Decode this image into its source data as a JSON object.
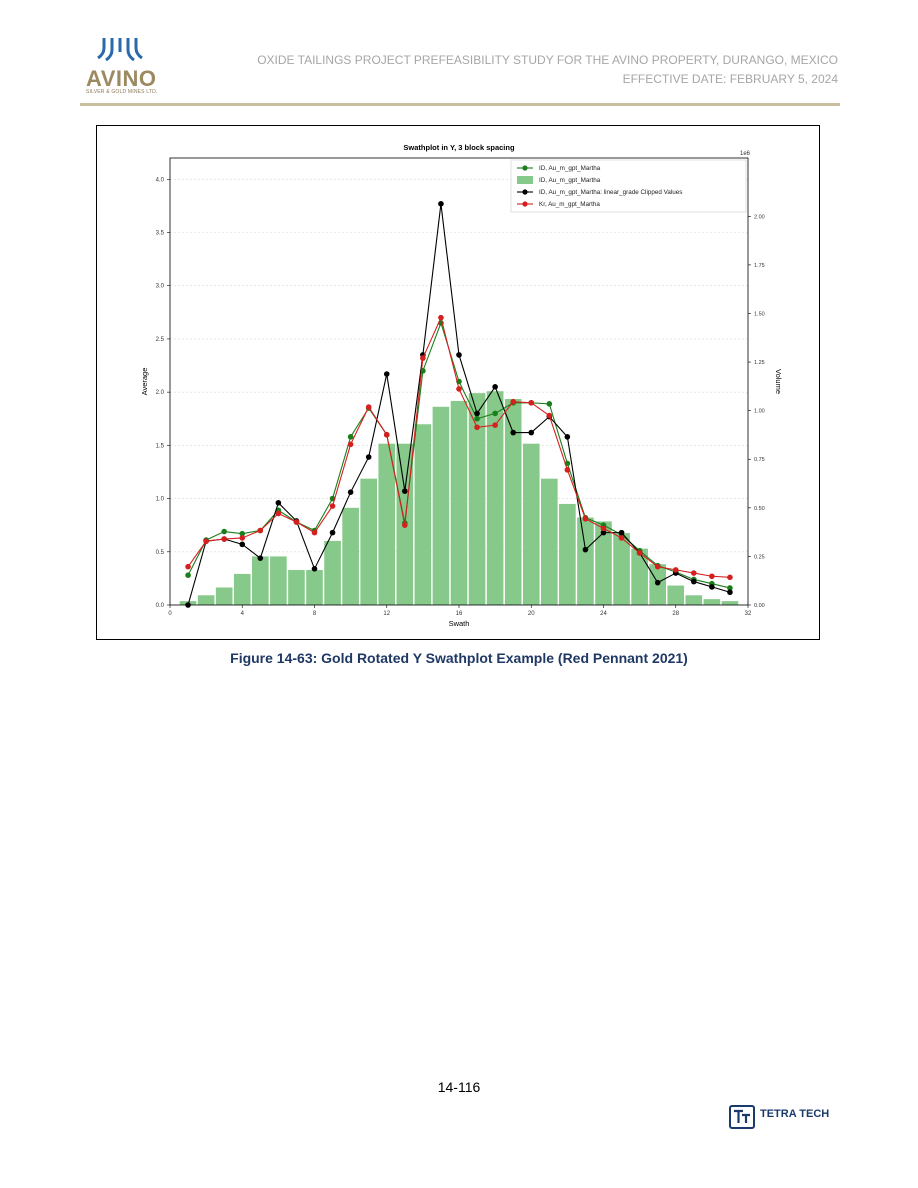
{
  "header": {
    "logo_text": "AVINO",
    "logo_subtext": "SILVER & GOLD MINES LTD.",
    "line1": "OXIDE TAILINGS PROJECT PREFEASIBILITY STUDY FOR THE AVINO PROPERTY, DURANGO, MEXICO",
    "line2": "EFFECTIVE DATE: FEBRUARY 5, 2024"
  },
  "caption": "Figure 14-63: Gold Rotated Y Swathplot Example (Red Pennant 2021)",
  "footer": {
    "page_number": "14-116",
    "brand": "TETRA TECH"
  },
  "colors": {
    "bars": "#86c98a",
    "id_line": "#1a7f1a",
    "id_clipped_line": "#000000",
    "kr_line": "#d62020",
    "caption": "#1f3864",
    "header_text": "#a6a6a6"
  },
  "chart_data": {
    "type": "line",
    "title": "Swathplot in Y, 3 block spacing",
    "xlabel": "Swath",
    "ylabel": "Average",
    "y2label": "Volume",
    "y2_multiplier": "1e6",
    "xlim": [
      0,
      32
    ],
    "ylim": [
      0,
      4.2
    ],
    "y2lim": [
      0,
      2.3
    ],
    "x_ticks": [
      0,
      4,
      8,
      12,
      16,
      20,
      24,
      28,
      32
    ],
    "y_ticks": [
      0.0,
      0.5,
      1.0,
      1.5,
      2.0,
      2.5,
      3.0,
      3.5,
      4.0
    ],
    "y2_ticks": [
      0.0,
      0.25,
      0.5,
      0.75,
      1.0,
      1.25,
      1.5,
      1.75,
      2.0
    ],
    "grid": true,
    "legend_position": "top-right",
    "x": [
      1,
      2,
      3,
      4,
      5,
      6,
      7,
      8,
      9,
      10,
      11,
      12,
      13,
      14,
      15,
      16,
      17,
      18,
      19,
      20,
      21,
      22,
      23,
      24,
      25,
      26,
      27,
      28,
      29,
      30,
      31
    ],
    "series": [
      {
        "name": "ID, Au_m_gpt_Martha",
        "kind": "line",
        "axis": "left",
        "color": "#1a7f1a",
        "values": [
          0.28,
          0.61,
          0.69,
          0.67,
          0.7,
          0.89,
          0.78,
          0.7,
          1.0,
          1.58,
          1.85,
          1.6,
          0.77,
          2.2,
          2.65,
          2.1,
          1.75,
          1.8,
          1.9,
          1.9,
          1.89,
          1.33,
          0.82,
          0.75,
          0.66,
          0.51,
          0.37,
          0.31,
          0.24,
          0.2,
          0.16
        ]
      },
      {
        "name": "ID, Au_m_gpt_Martha",
        "kind": "bar",
        "axis": "right",
        "color": "#86c98a",
        "values": [
          0.02,
          0.05,
          0.09,
          0.16,
          0.25,
          0.25,
          0.18,
          0.18,
          0.33,
          0.5,
          0.65,
          0.83,
          0.83,
          0.93,
          1.02,
          1.05,
          1.09,
          1.1,
          1.06,
          0.83,
          0.65,
          0.52,
          0.45,
          0.43,
          0.37,
          0.29,
          0.21,
          0.1,
          0.05,
          0.03,
          0.02
        ]
      },
      {
        "name": "ID, Au_m_gpt_Martha: linear_grade Clipped Values",
        "kind": "line",
        "axis": "left",
        "color": "#000000",
        "values": [
          0.0,
          0.6,
          0.62,
          0.57,
          0.44,
          0.96,
          0.79,
          0.34,
          0.68,
          1.06,
          1.39,
          2.17,
          1.07,
          2.35,
          3.77,
          2.35,
          1.8,
          2.05,
          1.62,
          1.62,
          1.77,
          1.58,
          0.52,
          0.68,
          0.68,
          0.49,
          0.21,
          0.3,
          0.22,
          0.17,
          0.12
        ]
      },
      {
        "name": "Kr, Au_m_gpt_Martha",
        "kind": "line",
        "axis": "left",
        "color": "#d62020",
        "values": [
          0.36,
          0.6,
          0.62,
          0.63,
          0.7,
          0.86,
          0.78,
          0.68,
          0.93,
          1.51,
          1.86,
          1.6,
          0.75,
          2.32,
          2.7,
          2.03,
          1.67,
          1.69,
          1.91,
          1.9,
          1.78,
          1.27,
          0.81,
          0.72,
          0.63,
          0.49,
          0.36,
          0.33,
          0.3,
          0.27,
          0.26
        ]
      }
    ]
  }
}
